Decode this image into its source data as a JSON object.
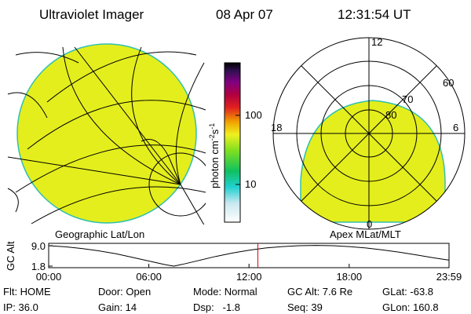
{
  "header": {
    "title": "Ultraviolet Imager",
    "date": "08 Apr 07",
    "time": "12:31:54 UT"
  },
  "geo_map": {
    "label": "Geographic Lat/Lon"
  },
  "polar_map": {
    "label": "Apex MLat/MLT",
    "mlt_labels": [
      "12",
      "18",
      "6",
      "0"
    ],
    "lat_labels": [
      60,
      70,
      80
    ]
  },
  "colorbar": {
    "label_parts": [
      "photon cm",
      "-2",
      "s",
      "-1"
    ],
    "range": [
      2.85,
      575
    ],
    "ticks": [
      10,
      100
    ]
  },
  "altitude_plot": {
    "ylabel": "GC Alt",
    "x": [
      0,
      1,
      2,
      3,
      4,
      5,
      6,
      7,
      7.5,
      8,
      9,
      10,
      11,
      12,
      13,
      14,
      15,
      16,
      17,
      18,
      19,
      20,
      21,
      22,
      23,
      23.98
    ],
    "values": [
      9.0,
      8.6,
      8.0,
      7.2,
      6.2,
      4.9,
      3.6,
      2.3,
      1.8,
      2.4,
      3.8,
      5.2,
      6.4,
      7.4,
      8.2,
      8.7,
      9.0,
      9.1,
      9.0,
      8.7,
      8.2,
      7.5,
      6.7,
      5.8,
      4.8,
      3.9
    ],
    "xlim": [
      0,
      23.98
    ],
    "ylim": [
      1.8,
      9.0
    ],
    "yticks": [
      {
        "value": 9.0,
        "label": "9.0"
      },
      {
        "value": 1.8,
        "label": "1.8"
      }
    ],
    "xticks": [
      {
        "value": 0,
        "label": "00:00"
      },
      {
        "value": 6,
        "label": "06:00"
      },
      {
        "value": 12,
        "label": "12:00"
      },
      {
        "value": 18,
        "label": "18:00"
      },
      {
        "value": 23.98,
        "label": "23:59"
      }
    ],
    "current_time": 12.53,
    "current_color": "#e00000"
  },
  "info": {
    "rows": [
      [
        "Flt: HOME",
        "Door: Open",
        "Mode: Normal",
        "GC Alt: 7.6 Re",
        "GLat: -63.8"
      ],
      [
        "IP: 36.0",
        "Gain: 14",
        "Dsp:   -1.8",
        "Seq: 39",
        "GLon: 160.8"
      ]
    ]
  }
}
